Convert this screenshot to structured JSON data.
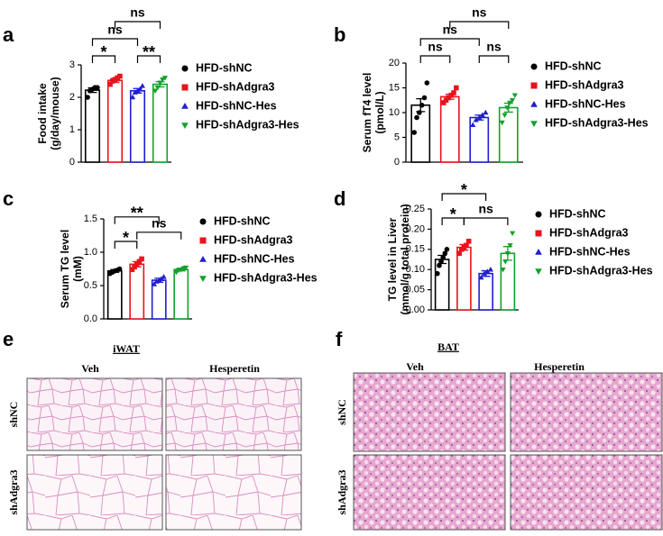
{
  "chart_data": [
    {
      "type": "bar",
      "panel": "a",
      "ylabel": [
        "Food intake",
        "(g/day/mouse)"
      ],
      "categories": [
        "HFD-shNC",
        "HFD-shAdgra3",
        "HFD-shNC-Hes",
        "HFD-shAdgra3-Hes"
      ],
      "colors": [
        "#000000",
        "#e8141c",
        "#1f1fd0",
        "#12a12c"
      ],
      "markers": [
        "circle",
        "square",
        "triangle-up",
        "triangle-down"
      ],
      "values": [
        2.22,
        2.52,
        2.2,
        2.4
      ],
      "errors": [
        0.07,
        0.06,
        0.07,
        0.08
      ],
      "points": [
        [
          2.0,
          2.2,
          2.25,
          2.3,
          2.3
        ],
        [
          2.4,
          2.5,
          2.55,
          2.6,
          2.65
        ],
        [
          2.0,
          2.15,
          2.2,
          2.25,
          2.35
        ],
        [
          2.2,
          2.3,
          2.45,
          2.55,
          2.6
        ]
      ],
      "ylim": [
        0,
        3
      ],
      "yticks": [
        0,
        1,
        2,
        3
      ],
      "brackets": [
        {
          "between": [
            "HFD-shNC",
            "HFD-shAdgra3"
          ],
          "label": "*"
        },
        {
          "between": [
            "HFD-shNC-Hes",
            "HFD-shAdgra3-Hes"
          ],
          "label": "**"
        },
        {
          "between": [
            "HFD-shNC",
            "HFD-shNC-Hes"
          ],
          "label": "ns"
        },
        {
          "between": [
            "HFD-shAdgra3",
            "HFD-shAdgra3-Hes"
          ],
          "label": "ns"
        }
      ]
    },
    {
      "type": "bar",
      "panel": "b",
      "ylabel": [
        "Serum fT4 level",
        "(pmol/L)"
      ],
      "categories": [
        "HFD-shNC",
        "HFD-shAdgra3",
        "HFD-shNC-Hes",
        "HFD-shAdgra3-Hes"
      ],
      "colors": [
        "#000000",
        "#e8141c",
        "#1f1fd0",
        "#12a12c"
      ],
      "markers": [
        "circle",
        "square",
        "triangle-up",
        "triangle-down"
      ],
      "values": [
        11.5,
        13.2,
        9,
        11
      ],
      "errors": [
        1.3,
        0.5,
        0.5,
        0.9
      ],
      "points": [
        [
          6,
          9,
          10,
          11.5,
          13,
          16
        ],
        [
          12,
          12.5,
          13,
          13.5,
          14,
          15
        ],
        [
          7.5,
          8.5,
          9,
          9.5,
          10
        ],
        [
          8,
          9.5,
          11,
          12,
          12.5,
          13.5
        ]
      ],
      "ylim": [
        0,
        20
      ],
      "yticks": [
        0,
        5,
        10,
        15,
        20
      ],
      "brackets": [
        {
          "between": [
            "HFD-shNC",
            "HFD-shAdgra3"
          ],
          "label": "ns"
        },
        {
          "between": [
            "HFD-shNC-Hes",
            "HFD-shAdgra3-Hes"
          ],
          "label": "ns"
        },
        {
          "between": [
            "HFD-shNC",
            "HFD-shNC-Hes"
          ],
          "label": "ns"
        },
        {
          "between": [
            "HFD-shAdgra3",
            "HFD-shAdgra3-Hes"
          ],
          "label": "ns"
        }
      ]
    },
    {
      "type": "bar",
      "panel": "c",
      "ylabel": [
        "Serum TG level",
        "(mM)"
      ],
      "categories": [
        "HFD-shNC",
        "HFD-shAdgra3",
        "HFD-shNC-Hes",
        "HFD-shAdgra3-Hes"
      ],
      "colors": [
        "#000000",
        "#e8141c",
        "#1f1fd0",
        "#12a12c"
      ],
      "markers": [
        "circle",
        "square",
        "triangle-up",
        "triangle-down"
      ],
      "values": [
        0.72,
        0.82,
        0.58,
        0.74
      ],
      "errors": [
        0.02,
        0.04,
        0.03,
        0.02
      ],
      "points": [
        [
          0.68,
          0.7,
          0.72,
          0.73,
          0.75
        ],
        [
          0.74,
          0.78,
          0.82,
          0.86,
          0.9
        ],
        [
          0.52,
          0.56,
          0.58,
          0.6,
          0.63
        ],
        [
          0.7,
          0.73,
          0.74,
          0.76,
          0.77
        ]
      ],
      "ylim": [
        0,
        1.5
      ],
      "yticks": [
        {
          "value": 0,
          "label": "0.0"
        },
        {
          "value": 0.5,
          "label": "0.5"
        },
        {
          "value": 1,
          "label": "1.0"
        },
        {
          "value": 1.5,
          "label": "1.5"
        }
      ],
      "brackets": [
        {
          "between": [
            "HFD-shNC",
            "HFD-shAdgra3"
          ],
          "label": "*"
        },
        {
          "between": [
            "HFD-shAdgra3",
            "HFD-shAdgra3-Hes"
          ],
          "label": "ns"
        },
        {
          "between": [
            "HFD-shNC",
            "HFD-shNC-Hes"
          ],
          "label": "**"
        }
      ]
    },
    {
      "type": "bar",
      "panel": "d",
      "ylabel": [
        "TG level in Liver",
        "(mmol/g total protein)"
      ],
      "categories": [
        "HFD-shNC",
        "HFD-shAdgra3",
        "HFD-shNC-Hes",
        "HFD-shAdgra3-Hes"
      ],
      "colors": [
        "#000000",
        "#e8141c",
        "#1f1fd0",
        "#12a12c"
      ],
      "markers": [
        "circle",
        "square",
        "triangle-up",
        "triangle-down"
      ],
      "values": [
        0.125,
        0.155,
        0.09,
        0.14
      ],
      "errors": [
        0.01,
        0.007,
        0.007,
        0.017
      ],
      "points": [
        [
          0.09,
          0.11,
          0.12,
          0.13,
          0.14,
          0.15
        ],
        [
          0.14,
          0.15,
          0.155,
          0.16,
          0.17
        ],
        [
          0.08,
          0.09,
          0.095,
          0.1
        ],
        [
          0.1,
          0.12,
          0.14,
          0.16,
          0.19
        ]
      ],
      "ylim": [
        0,
        0.25
      ],
      "yticks": [
        {
          "value": 0,
          "label": "0.00"
        },
        {
          "value": 0.05,
          "label": "0.05"
        },
        {
          "value": 0.1,
          "label": "0.10"
        },
        {
          "value": 0.15,
          "label": "0.15"
        },
        {
          "value": 0.2,
          "label": "0.20"
        },
        {
          "value": 0.25,
          "label": "0.25"
        }
      ],
      "brackets": [
        {
          "between": [
            "HFD-shNC",
            "HFD-shAdgra3"
          ],
          "label": "*"
        },
        {
          "between": [
            "HFD-shAdgra3",
            "HFD-shAdgra3-Hes"
          ],
          "label": "ns"
        },
        {
          "between": [
            "HFD-shNC",
            "HFD-shNC-Hes"
          ],
          "label": "*"
        }
      ]
    }
  ],
  "histology": [
    {
      "panel": "e",
      "title": "iWAT",
      "columns": [
        "Veh",
        "Hesperetin"
      ],
      "rows": [
        "shNC",
        "shAdgra3"
      ]
    },
    {
      "panel": "f",
      "title": "BAT",
      "columns": [
        "Veh",
        "Hesperetin"
      ],
      "rows": [
        "shNC",
        "shAdgra3"
      ]
    }
  ]
}
